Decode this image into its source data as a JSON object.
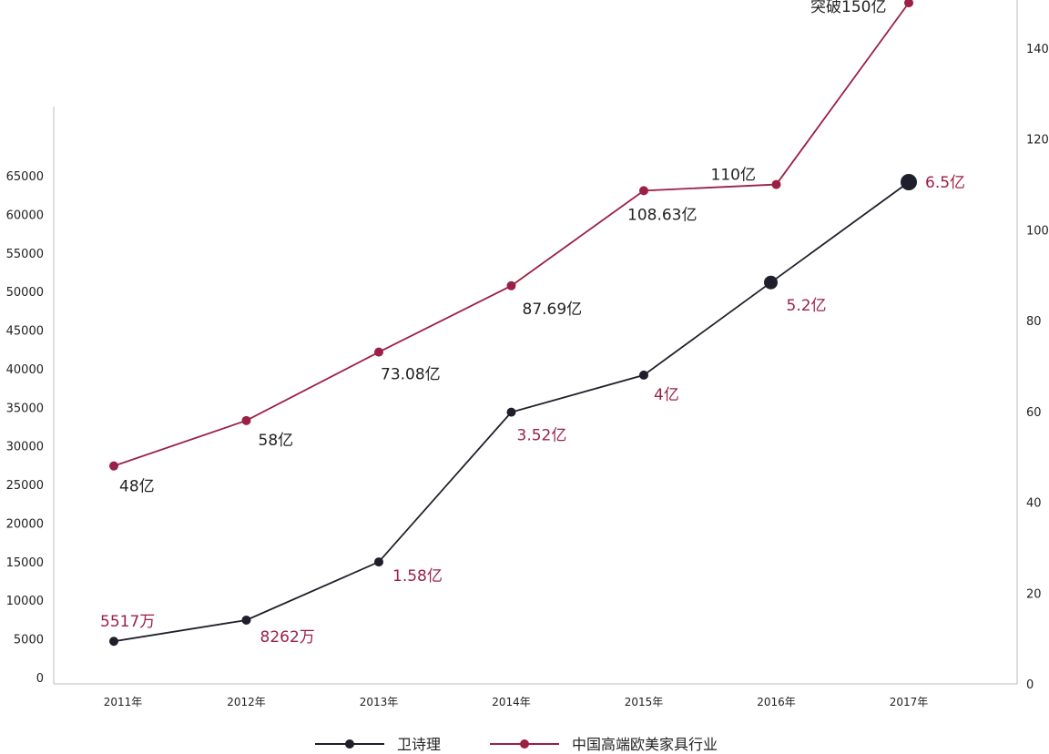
{
  "chart_data": {
    "type": "line",
    "categories": [
      "2011年",
      "2012年",
      "2013年",
      "2014年",
      "2015年",
      "2016年",
      "2017年"
    ],
    "left_axis": {
      "ticks": [
        0,
        5000,
        10000,
        15000,
        20000,
        25000,
        30000,
        35000,
        40000,
        45000,
        50000,
        55000,
        60000,
        65000
      ],
      "range": [
        0,
        65000
      ]
    },
    "right_axis": {
      "ticks": [
        0,
        20,
        40,
        60,
        80,
        100,
        120,
        140
      ],
      "range": [
        0,
        150
      ]
    },
    "series": [
      {
        "name": "卫诗理",
        "axis": "left",
        "color": "#1f1f2b",
        "values": [
          5517,
          8262,
          15800,
          35200,
          40000,
          52000,
          65000
        ],
        "labels": [
          "5517万",
          "8262万",
          "1.58亿",
          "3.52亿",
          "4亿",
          "5.2亿",
          "6.5亿"
        ],
        "label_color": "#9b2045"
      },
      {
        "name": "中国高端欧美家具行业",
        "axis": "right",
        "color": "#9b2045",
        "values": [
          48,
          58,
          73.08,
          87.69,
          108.63,
          110,
          150
        ],
        "labels": [
          "48亿",
          "58亿",
          "73.08亿",
          "87.69亿",
          "108.63亿",
          "110亿",
          "突破150亿"
        ],
        "label_color": "#222222"
      }
    ],
    "legend": [
      "卫诗理",
      "中国高端欧美家具行业"
    ]
  }
}
